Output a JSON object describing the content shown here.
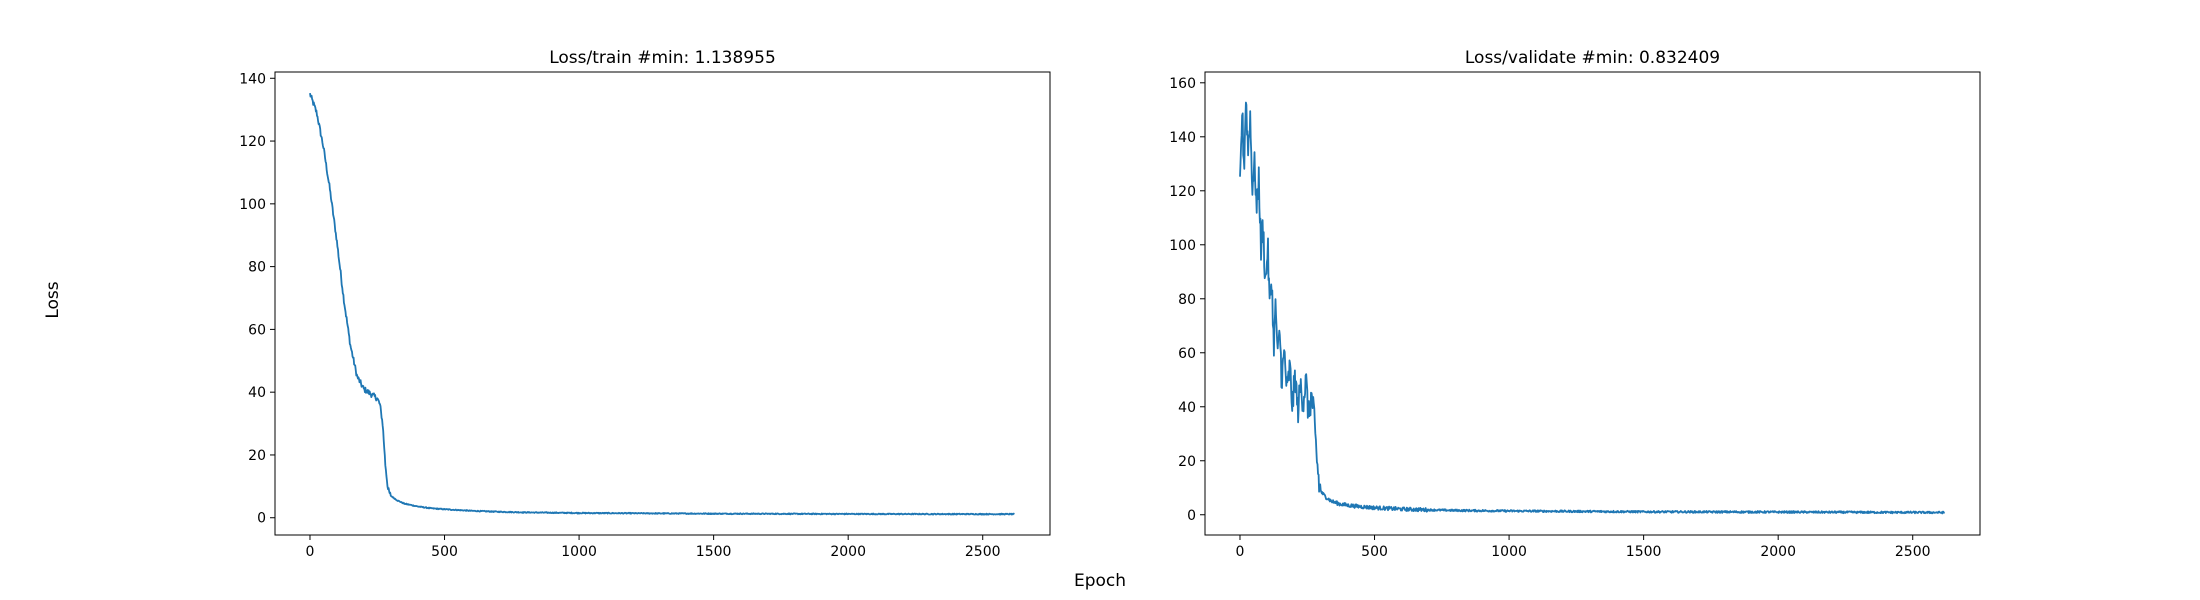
{
  "figure": {
    "xlabel": "Epoch",
    "ylabel": "Loss",
    "line_color": "#1f77b4"
  },
  "chart_data": [
    {
      "type": "line",
      "title": "Loss/train #min: 1.138955",
      "xlim": [
        -130,
        2750
      ],
      "ylim": [
        -5.5,
        142
      ],
      "xticks": [
        0,
        500,
        1000,
        1500,
        2000,
        2500
      ],
      "yticks": [
        0,
        20,
        40,
        60,
        80,
        100,
        120,
        140
      ],
      "series": [
        {
          "x": [
            0,
            25,
            50,
            75,
            100,
            125,
            150,
            175,
            200,
            225,
            250,
            260,
            270,
            280,
            290,
            300,
            325,
            350,
            400,
            450,
            500,
            600,
            700,
            800,
            1000,
            1500,
            2000,
            2618
          ],
          "y": [
            135,
            129,
            118,
            104,
            88,
            70,
            55,
            45,
            41,
            39.5,
            38,
            36,
            30,
            17,
            9,
            7,
            5.5,
            4.5,
            3.6,
            3.0,
            2.7,
            2.2,
            1.9,
            1.7,
            1.5,
            1.3,
            1.2,
            1.14
          ]
        }
      ]
    },
    {
      "type": "line",
      "title": "Loss/validate #min: 0.832409",
      "xlim": [
        -130,
        2750
      ],
      "ylim": [
        -7.5,
        164
      ],
      "xticks": [
        0,
        500,
        1000,
        1500,
        2000,
        2500
      ],
      "yticks": [
        0,
        20,
        40,
        60,
        80,
        100,
        120,
        140,
        160
      ],
      "series": [
        {
          "x": [
            0,
            8,
            15,
            22,
            30,
            38,
            45,
            55,
            62,
            70,
            78,
            85,
            95,
            103,
            110,
            118,
            125,
            133,
            140,
            148,
            155,
            165,
            175,
            185,
            195,
            205,
            215,
            225,
            235,
            245,
            255,
            265,
            272,
            280,
            288,
            295,
            305,
            320,
            340,
            370,
            400,
            450,
            500,
            600,
            700,
            800,
            1000,
            1500,
            2000,
            2618
          ],
          "y": [
            120,
            150,
            128,
            155,
            135,
            148,
            122,
            130,
            112,
            125,
            98,
            108,
            85,
            100,
            78,
            88,
            62,
            78,
            58,
            68,
            50,
            60,
            45,
            55,
            40,
            52,
            38,
            48,
            42,
            50,
            36,
            44,
            40,
            28,
            18,
            10,
            8,
            6.5,
            5,
            4,
            3.5,
            3,
            2.6,
            2.1,
            1.8,
            1.6,
            1.4,
            1.1,
            1.0,
            0.83
          ]
        }
      ]
    }
  ]
}
